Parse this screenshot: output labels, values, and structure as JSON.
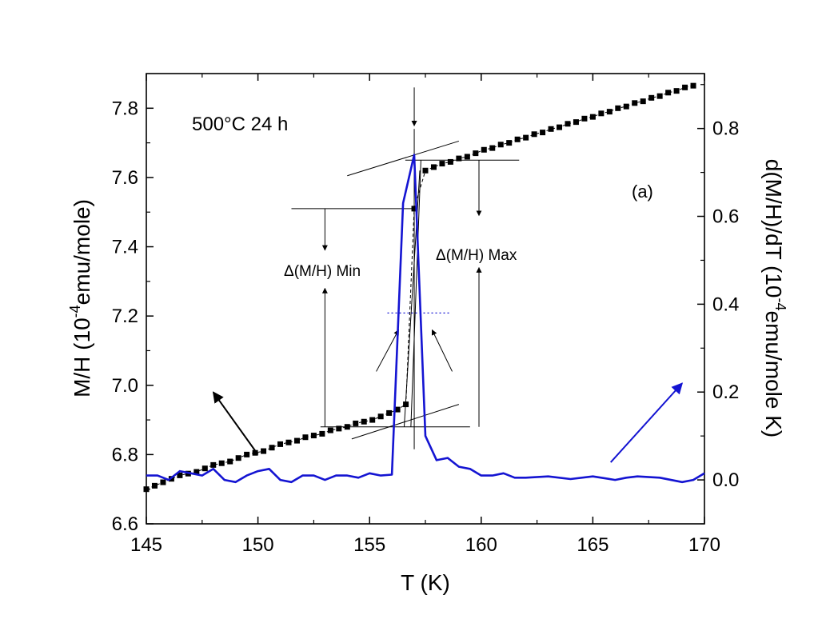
{
  "chart_data": {
    "type": "line",
    "panel_label": "(a)",
    "annotation": "500°C 24 h",
    "xlabel": "T (K)",
    "ylabel_left": "M/H (10<sup>-4</sup>emu/mole)",
    "ylabel_left_parts": [
      "M/H (10",
      "-4",
      "emu/mole)"
    ],
    "ylabel_right_parts": [
      "d(M/H)/dT (10",
      "-4",
      "emu/mole K)"
    ],
    "xlim": [
      145,
      170
    ],
    "ylim_left": [
      6.6,
      7.9
    ],
    "ylim_right": [
      -0.1,
      0.925
    ],
    "x_ticks": [
      145,
      150,
      155,
      160,
      165,
      170
    ],
    "x_tick_labels": [
      "145",
      "150",
      "155",
      "160",
      "165",
      "170"
    ],
    "y_left_ticks": [
      6.6,
      6.8,
      7.0,
      7.2,
      7.4,
      7.6,
      7.8
    ],
    "y_left_tick_labels": [
      "6.6",
      "6.8",
      "7.0",
      "7.2",
      "7.4",
      "7.6",
      "7.8"
    ],
    "y_right_ticks": [
      0.0,
      0.2,
      0.4,
      0.6,
      0.8
    ],
    "y_right_tick_labels": [
      "0.0",
      "0.2",
      "0.4",
      "0.6",
      "0.8"
    ],
    "labels": {
      "delta_min": "Δ(M/H) Min",
      "delta_max": "Δ(M/H) Max"
    },
    "series": [
      {
        "name": "M/H",
        "axis": "left",
        "color": "#000000",
        "marker": "square",
        "x": [
          145.0,
          145.375,
          145.75,
          146.125,
          146.5,
          146.875,
          147.25,
          147.625,
          148.0,
          148.375,
          148.75,
          149.125,
          149.5,
          149.875,
          150.25,
          150.625,
          151.0,
          151.375,
          151.75,
          152.125,
          152.5,
          152.875,
          153.25,
          153.625,
          154.0,
          154.375,
          154.75,
          155.125,
          155.5,
          155.875,
          156.25,
          156.625,
          157.0,
          157.5,
          157.875,
          158.25,
          158.625,
          159.0,
          159.375,
          159.75,
          160.125,
          160.5,
          160.875,
          161.25,
          161.625,
          162.0,
          162.375,
          162.75,
          163.125,
          163.5,
          163.875,
          164.25,
          164.625,
          165.0,
          165.375,
          165.75,
          166.125,
          166.5,
          166.875,
          167.25,
          167.625,
          168.0,
          168.375,
          168.75,
          169.125,
          169.5
        ],
        "y": [
          6.7,
          6.71,
          6.72,
          6.73,
          6.74,
          6.745,
          6.75,
          6.76,
          6.77,
          6.775,
          6.78,
          6.79,
          6.8,
          6.805,
          6.81,
          6.82,
          6.83,
          6.835,
          6.84,
          6.85,
          6.855,
          6.86,
          6.87,
          6.875,
          6.88,
          6.89,
          6.895,
          6.9,
          6.91,
          6.92,
          6.93,
          6.945,
          7.51,
          7.62,
          7.63,
          7.64,
          7.645,
          7.655,
          7.66,
          7.67,
          7.68,
          7.685,
          7.695,
          7.7,
          7.71,
          7.715,
          7.725,
          7.73,
          7.74,
          7.745,
          7.755,
          7.76,
          7.77,
          7.775,
          7.785,
          7.79,
          7.8,
          7.805,
          7.815,
          7.82,
          7.83,
          7.835,
          7.845,
          7.85,
          7.86,
          7.865
        ]
      },
      {
        "name": "d(M/H)/dT",
        "axis": "right",
        "color": "#1414d2",
        "x": [
          145.0,
          145.5,
          146.0,
          146.5,
          147.0,
          147.5,
          148.0,
          148.5,
          149.0,
          149.5,
          150.0,
          150.5,
          151.0,
          151.5,
          152.0,
          152.5,
          153.0,
          153.5,
          154.0,
          154.5,
          155.0,
          155.5,
          156.0,
          156.5,
          157.0,
          157.5,
          158.0,
          158.5,
          159.0,
          159.5,
          160.0,
          160.5,
          161.0,
          161.5,
          162.0,
          163.0,
          164.0,
          165.0,
          166.0,
          166.5,
          167.0,
          168.0,
          169.0,
          169.5,
          170.0
        ],
        "y": [
          0.01,
          0.01,
          0.0,
          0.02,
          0.015,
          0.01,
          0.025,
          0.0,
          -0.005,
          0.01,
          0.02,
          0.025,
          0.0,
          -0.005,
          0.01,
          0.01,
          0.0,
          0.01,
          0.01,
          0.005,
          0.015,
          0.01,
          0.012,
          0.63,
          0.74,
          0.1,
          0.045,
          0.05,
          0.03,
          0.025,
          0.01,
          0.01,
          0.015,
          0.005,
          0.005,
          0.008,
          0.002,
          0.008,
          0.0,
          0.005,
          0.008,
          0.005,
          -0.005,
          0.0,
          0.015
        ]
      }
    ]
  }
}
